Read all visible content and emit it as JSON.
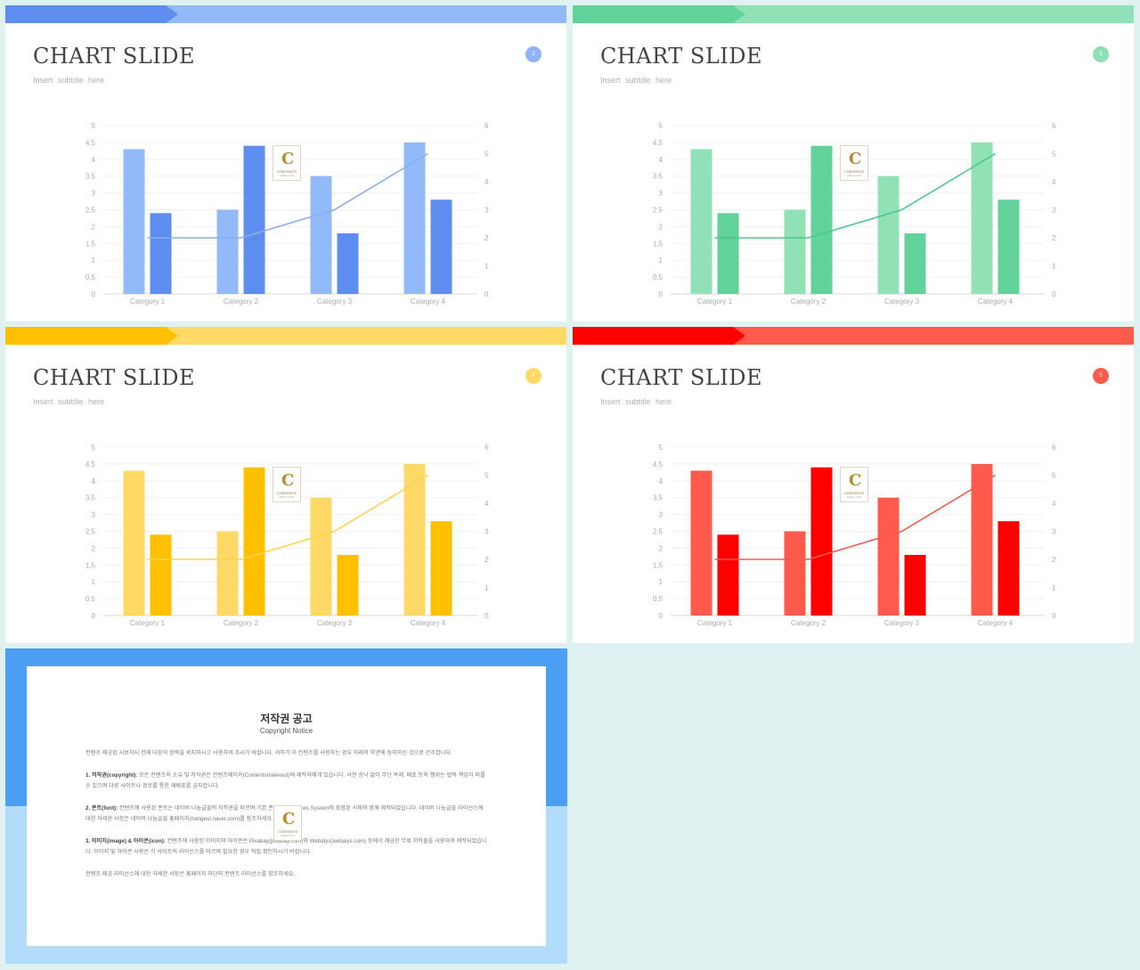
{
  "slides": [
    {
      "title": "CHART SLIDE",
      "subtitle": "Insert  subtitle  here",
      "badge": "2",
      "colors": {
        "bar_dark": "#5c8def",
        "bar_light": "#92b9f8",
        "light": "#92b9f8",
        "line": "#8aaeea",
        "dark": "#5c8def",
        "badge": "#8fb4f4"
      }
    },
    {
      "title": "CHART SLIDE",
      "subtitle": "Insert  subtitle  here",
      "badge": "3",
      "colors": {
        "bar_dark": "#62d29b",
        "bar_light": "#91e1b7",
        "light": "#91e1b7",
        "line": "#4cc88a",
        "dark": "#62d29b",
        "badge": "#8ee0b6"
      }
    },
    {
      "title": "CHART SLIDE",
      "subtitle": "Insert  subtitle  here",
      "badge": "4",
      "colors": {
        "bar_dark": "#ffc000",
        "bar_light": "#ffd966",
        "light": "#ffd966",
        "line": "#ffd24d",
        "dark": "#ffc000",
        "badge": "#ffd966"
      }
    },
    {
      "title": "CHART SLIDE",
      "subtitle": "Insert  subtitle  here",
      "badge": "5",
      "colors": {
        "bar_dark": "#ff0000",
        "bar_light": "#ff5a4b",
        "light": "#ff5a4b",
        "line": "#f05a4a",
        "dark": "#ff0000",
        "badge": "#ff5a4b"
      }
    }
  ],
  "chart_data": {
    "type": "bar",
    "categories": [
      "Category 1",
      "Category 2",
      "Category 3",
      "Category 4"
    ],
    "series": [
      {
        "kind": "bar",
        "axis": "left",
        "values": [
          4.3,
          2.5,
          3.5,
          4.5
        ]
      },
      {
        "kind": "bar",
        "axis": "left",
        "values": [
          2.4,
          4.4,
          1.8,
          2.8
        ]
      },
      {
        "kind": "line",
        "axis": "right",
        "values": [
          2,
          2,
          3,
          5
        ]
      }
    ],
    "ylim": [
      0,
      5
    ],
    "y_ticks": [
      "0",
      "0.5",
      "1",
      "1.5",
      "2",
      "2.5",
      "3",
      "3.5",
      "4",
      "4.5",
      "5"
    ],
    "y2lim": [
      0,
      6
    ],
    "y2_ticks": [
      "0",
      "1",
      "2",
      "3",
      "4",
      "5",
      "6"
    ],
    "grid": true
  },
  "watermark": {
    "letter": "C",
    "line1": "CONTENTS",
    "line2": "MAKE OUR"
  },
  "notice": {
    "title": "저작권 공고",
    "subtitle": "Copyright Notice",
    "intro": "컨텐츠 제공업 시보하시 전에 다음의 항목을 숙지하시고 사용하여 주시기 바랍니다. 귀하가 이 컨텐츠를 사용하는 경우 아래의 약관에 동의하신 것으로 간주합니다.",
    "p1_head": "1. 저작권(copyright):",
    "p1_body": " 모든 컨텐츠의 소유 및 저작권은 컨텐츠메이커(Contentsmakeout)에 제작자에게 있습니다. 사전 승낙 없이 무단 복제, 배포 등의 행위는 법적 책임이 따를 수 있으며 다른 사이트나 경로를 통한 재배포를 금지합니다.",
    "p2_head": "2. 폰트(font):",
    "p2_body": " 컨텐츠에 사용된 폰트는 네이버 나눔글꼴의 저작권을 따르며 기본 폰트 및 Windows System에 포함된 서체와 함께 제작되었습니다. 네이버 나눔글꼴 라이선스에 대한 자세한 사항은 네이버 나눔글꼴 홈페이지(hangeul.naver.com)를 참조하세요.",
    "p3_head": "3. 이미지(image) & 아이콘(icon):",
    "p3_body": " 컨텐츠에 사용된 이미지와 아이콘은 Pixabay(pixabay.com)와 Webalys(webalys.com) 등에서 제공한 무료 저작물을 사용하여 제작되었습니다. 이미지 및 아이콘 사용은 각 사이트의 라이선스를 따르며 필요한 경우 직접 확인하시기 바랍니다.",
    "closing": "컨텐츠 제공 라이선스에 대한 자세한 사항은 홈페이지 하단의 컨텐츠 라이선스를 참조하세요."
  }
}
